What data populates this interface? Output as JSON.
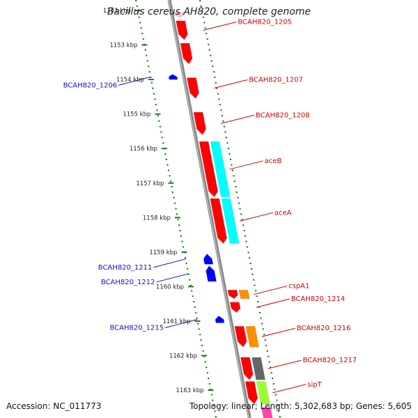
{
  "header": {
    "title": "Bacillus cereus AH820, complete genome"
  },
  "footer": {
    "accession": "Accession: NC_011773",
    "summary": "Topology: linear; Length: 5,302,683 bp; Genes: 5,605"
  },
  "colors": {
    "backbone": "#8a8a8a",
    "tick": "#1a7a1a",
    "forward_label": "#d40000",
    "reverse_label": "#1010cc",
    "forward_gene": "#ff0000",
    "reverse_gene": "#0000ff"
  },
  "ticks": [
    "1152 kbp",
    "1153 kbp",
    "1154 kbp",
    "1155 kbp",
    "1156 kbp",
    "1157 kbp",
    "1158 kbp",
    "1159 kbp",
    "1160 kbp",
    "1161 kbp",
    "1162 kbp",
    "1163 kbp"
  ],
  "genes_forward": [
    {
      "label": "",
      "start": 1152.05,
      "end": 1152.2
    },
    {
      "label": "BCAH820_1205",
      "start": 1152.3,
      "end": 1152.85
    },
    {
      "label": "",
      "start": 1152.95,
      "end": 1153.55
    },
    {
      "label": "BCAH820_1207",
      "start": 1153.95,
      "end": 1154.55
    },
    {
      "label": "BCAH820_1208",
      "start": 1154.95,
      "end": 1155.6
    },
    {
      "label": "aceB",
      "start": 1155.8,
      "end": 1157.4
    },
    {
      "label": "aceA",
      "start": 1157.45,
      "end": 1158.75
    },
    {
      "label": "cspA1",
      "start": 1160.1,
      "end": 1160.35
    },
    {
      "label": "BCAH820_1214",
      "start": 1160.45,
      "end": 1160.75
    },
    {
      "label": "BCAH820_1216",
      "start": 1161.15,
      "end": 1161.75
    },
    {
      "label": "BCAH820_1217",
      "start": 1162.05,
      "end": 1162.7
    },
    {
      "label": "sipT",
      "start": 1162.75,
      "end": 1163.4
    }
  ],
  "genes_reverse": [
    {
      "label": "BCAH820_1206",
      "start": 1153.85,
      "end": 1154.0
    },
    {
      "label": "BCAH820_1211",
      "start": 1159.05,
      "end": 1159.35
    },
    {
      "label": "BCAH820_1212",
      "start": 1159.4,
      "end": 1159.85
    },
    {
      "label": "BCAH820_1215",
      "start": 1160.85,
      "end": 1161.05
    }
  ],
  "features": [
    {
      "name": "aceB",
      "color": "#00ffff",
      "start": 1155.8,
      "end": 1157.4
    },
    {
      "name": "aceA",
      "color": "#00ffff",
      "start": 1157.45,
      "end": 1158.75
    },
    {
      "name": "cspA1",
      "color": "#ff8c00",
      "start": 1160.1,
      "end": 1160.35
    },
    {
      "name": "BCAH820_1216",
      "color": "#ff8c00",
      "start": 1161.15,
      "end": 1161.75
    },
    {
      "name": "BCAH820_1217",
      "color": "#666666",
      "start": 1162.05,
      "end": 1162.7
    },
    {
      "name": "sipT",
      "color": "#99ff33",
      "start": 1162.75,
      "end": 1163.4
    },
    {
      "name": "",
      "color": "#ff44aa",
      "start": 1163.5,
      "end": 1163.9
    }
  ]
}
